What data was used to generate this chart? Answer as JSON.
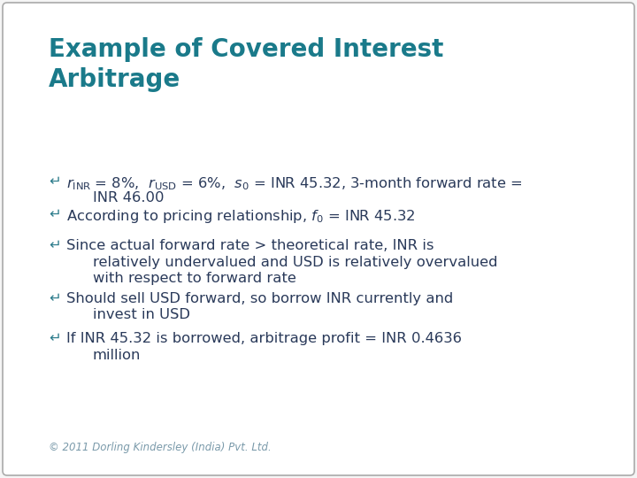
{
  "title": "Example of Covered Interest\nArbitrage",
  "title_color": "#1a7a8a",
  "background_color": "#f5f5f5",
  "border_color": "#aaaaaa",
  "bullet_color": "#2a7a8a",
  "text_color": "#2a3a5a",
  "footer_color": "#7a9aaa",
  "footer_text": "© 2011 Dorling Kindersley (India) Pvt. Ltd.",
  "title_fontsize": 20,
  "body_fontsize": 11.8,
  "footer_fontsize": 8.5,
  "bullet_items": [
    {
      "line1": "$r_{\\mathrm{INR}}$ = 8%,  $r_{\\mathrm{USD}}$ = 6%,  $s_0$ = INR 45.32, 3-month forward rate =",
      "line2": "INR 46.00"
    },
    {
      "line1": "According to pricing relationship, $f_0$ = INR 45.32",
      "line2": null
    },
    {
      "line1": "Since actual forward rate > theoretical rate, INR is",
      "line2": "relatively undervalued and USD is relatively overvalued",
      "line3": "with respect to forward rate"
    },
    {
      "line1": "Should sell USD forward, so borrow INR currently and",
      "line2": "invest in USD"
    },
    {
      "line1": "If INR 45.32 is borrowed, arbitrage profit = INR 0.4636",
      "line2": "million"
    }
  ]
}
